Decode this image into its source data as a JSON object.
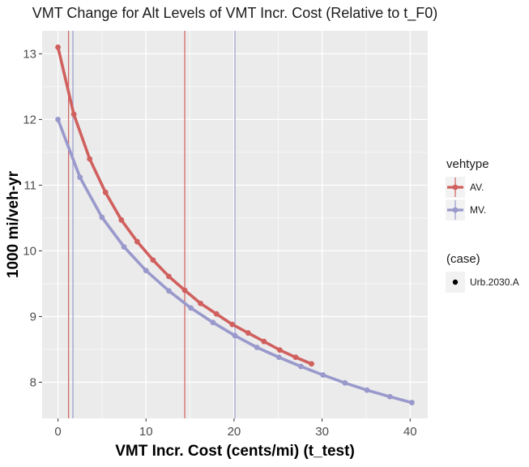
{
  "chart_data": {
    "type": "line",
    "title": "VMT Change for Alt Levels of VMT Incr. Cost (Relative to t_F0)",
    "xlabel": "VMT Incr. Cost (cents/mi) (t_test)",
    "ylabel": "1000 mi/veh-yr",
    "xlim": [
      -1.8,
      42.0
    ],
    "ylim": [
      7.45,
      13.35
    ],
    "x_ticks": [
      0,
      10,
      20,
      30,
      40
    ],
    "x_tick_labels": [
      "0",
      "10",
      "20",
      "30",
      "40"
    ],
    "y_ticks": [
      8,
      9,
      10,
      11,
      12,
      13
    ],
    "y_tick_labels": [
      "8",
      "9",
      "10",
      "11",
      "12",
      "13"
    ],
    "grid": true,
    "series": [
      {
        "name": "AV.",
        "color": "#d0605e",
        "x": [
          0,
          1.8,
          3.6,
          5.4,
          7.2,
          9.0,
          10.8,
          12.6,
          14.4,
          16.2,
          18.0,
          19.8,
          21.6,
          23.4,
          25.2,
          27.0,
          28.8
        ],
        "y": [
          13.1,
          12.08,
          11.4,
          10.89,
          10.47,
          10.14,
          9.86,
          9.61,
          9.4,
          9.2,
          9.04,
          8.88,
          8.75,
          8.62,
          8.49,
          8.38,
          8.28
        ],
        "vline": 14.4
      },
      {
        "name": "MV.",
        "color": "#9999cc",
        "x": [
          0,
          2.5,
          5.0,
          7.5,
          10.0,
          12.6,
          15.1,
          17.6,
          20.1,
          22.6,
          25.1,
          27.6,
          30.1,
          32.6,
          35.1,
          37.7,
          40.2
        ],
        "y": [
          12.0,
          11.12,
          10.51,
          10.06,
          9.7,
          9.39,
          9.13,
          8.91,
          8.71,
          8.53,
          8.38,
          8.24,
          8.11,
          7.99,
          7.88,
          7.78,
          7.69
        ],
        "vline": 20.1
      }
    ],
    "extra_vlines": [
      {
        "x": 1.2,
        "color": "#d0605e"
      },
      {
        "x": 1.7,
        "color": "#9999cc"
      }
    ],
    "legend": {
      "position": "right",
      "title": "vehtype",
      "items": [
        "AV.",
        "MV."
      ],
      "shape_title": "(case)",
      "shape_items": [
        "Urb.2030.A"
      ]
    }
  }
}
